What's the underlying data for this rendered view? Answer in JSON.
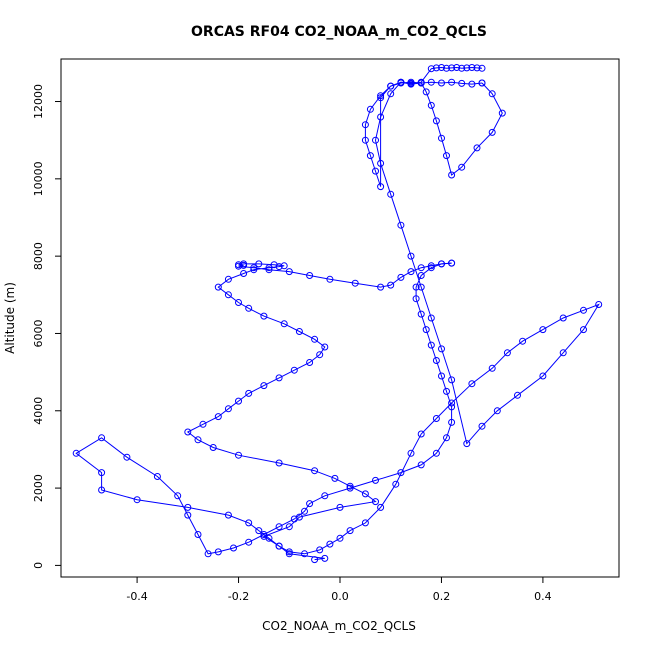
{
  "chart_data": {
    "type": "line",
    "title": "ORCAS RF04 CO2_NOAA_m_CO2_QCLS",
    "xlabel": "CO2_NOAA_m_CO2_QCLS",
    "ylabel": "Altitude (m)",
    "xlim": [
      -0.55,
      0.55
    ],
    "ylim": [
      -300,
      13100
    ],
    "x_ticks": [
      -0.4,
      -0.2,
      0.0,
      0.2,
      0.4
    ],
    "x_tick_labels": [
      "-0.4",
      "-0.2",
      "0.0",
      "0.2",
      "0.4"
    ],
    "y_ticks": [
      0,
      2000,
      4000,
      6000,
      8000,
      10000,
      12000
    ],
    "y_tick_labels": [
      "0",
      "2000",
      "4000",
      "6000",
      "8000",
      "10000",
      "12000"
    ],
    "grid": false,
    "legend": "none",
    "line_color": "#0000ff",
    "marker": "open-circle",
    "series": [
      {
        "x": [
          -0.05,
          -0.03,
          -0.1,
          -0.12,
          -0.15,
          -0.1,
          -0.08,
          0.0,
          0.07,
          0.05,
          0.02,
          -0.01,
          -0.05,
          -0.12,
          -0.2,
          -0.25,
          -0.28,
          -0.3,
          -0.27,
          -0.24,
          -0.22,
          -0.2,
          -0.18,
          -0.15,
          -0.12,
          -0.09,
          -0.06,
          -0.04,
          -0.03,
          -0.05,
          -0.08,
          -0.11,
          -0.15,
          -0.18,
          -0.2,
          -0.22,
          -0.24,
          -0.22,
          -0.19,
          -0.17,
          -0.14,
          -0.12,
          -0.11,
          -0.13,
          -0.16,
          -0.19,
          -0.2,
          -0.19,
          -0.2,
          -0.17,
          -0.14,
          -0.1,
          -0.06,
          -0.02,
          0.03,
          0.08,
          0.1,
          0.12,
          0.14,
          0.16,
          0.18,
          0.2,
          0.22
        ],
        "y": [
          150,
          180,
          300,
          500,
          750,
          1000,
          1250,
          1500,
          1650,
          1850,
          2050,
          2250,
          2450,
          2650,
          2850,
          3050,
          3250,
          3450,
          3650,
          3850,
          4050,
          4250,
          4450,
          4650,
          4850,
          5050,
          5250,
          5450,
          5650,
          5850,
          6050,
          6250,
          6450,
          6650,
          6800,
          7000,
          7200,
          7400,
          7550,
          7650,
          7700,
          7730,
          7750,
          7780,
          7800,
          7800,
          7780,
          7760,
          7740,
          7700,
          7650,
          7600,
          7500,
          7400,
          7300,
          7200,
          7250,
          7450,
          7600,
          7700,
          7750,
          7800,
          7820
        ]
      },
      {
        "x": [
          0.22,
          0.2,
          0.18,
          0.16,
          0.15,
          0.15,
          0.16,
          0.17,
          0.18,
          0.19,
          0.2,
          0.21,
          0.22,
          0.22,
          0.21,
          0.19,
          0.16,
          0.12,
          0.07,
          0.02,
          -0.03,
          -0.06,
          -0.07,
          -0.09,
          -0.12,
          -0.15,
          -0.18,
          -0.21,
          -0.24,
          -0.26,
          -0.28,
          -0.3,
          -0.32,
          -0.36,
          -0.42,
          -0.47,
          -0.52,
          -0.47,
          -0.47,
          -0.4,
          -0.3,
          -0.22,
          -0.18,
          -0.16,
          -0.14,
          -0.12,
          -0.1,
          -0.07,
          -0.04,
          -0.02,
          0.0,
          0.02,
          0.05,
          0.08,
          0.11,
          0.14,
          0.16,
          0.19,
          0.22,
          0.26,
          0.3,
          0.33,
          0.36,
          0.4,
          0.44,
          0.48,
          0.51,
          0.48,
          0.44,
          0.4,
          0.35,
          0.31,
          0.28,
          0.25,
          0.22,
          0.2,
          0.18,
          0.16,
          0.14,
          0.12,
          0.1,
          0.08,
          0.07,
          0.08,
          0.1,
          0.12,
          0.14,
          0.16,
          0.18,
          0.2,
          0.22,
          0.24,
          0.26,
          0.28
        ],
        "y": [
          7820,
          7800,
          7700,
          7500,
          7200,
          6900,
          6500,
          6100,
          5700,
          5300,
          4900,
          4500,
          4100,
          3700,
          3300,
          2900,
          2600,
          2400,
          2200,
          2000,
          1800,
          1600,
          1400,
          1200,
          1000,
          800,
          600,
          450,
          350,
          300,
          800,
          1300,
          1800,
          2300,
          2800,
          3300,
          2900,
          2400,
          1950,
          1700,
          1500,
          1300,
          1100,
          900,
          700,
          500,
          350,
          300,
          400,
          550,
          700,
          900,
          1100,
          1500,
          2100,
          2900,
          3400,
          3800,
          4200,
          4700,
          5100,
          5500,
          5800,
          6100,
          6400,
          6600,
          6750,
          6100,
          5500,
          4900,
          4400,
          4000,
          3600,
          3150,
          4800,
          5600,
          6400,
          7200,
          8000,
          8800,
          9600,
          10400,
          11000,
          11600,
          12200,
          12500,
          12450,
          12480,
          12500,
          12480,
          12500,
          12470,
          12450,
          12480
        ]
      },
      {
        "x": [
          0.28,
          0.3,
          0.32,
          0.3,
          0.27,
          0.24,
          0.22,
          0.21,
          0.2,
          0.19,
          0.18,
          0.17,
          0.16,
          0.14,
          0.12,
          0.1,
          0.08,
          0.06,
          0.05,
          0.05,
          0.06,
          0.07,
          0.08,
          0.08,
          0.1,
          0.12,
          0.14,
          0.16,
          0.18,
          0.19,
          0.2,
          0.21,
          0.22,
          0.23,
          0.24,
          0.25,
          0.26,
          0.27,
          0.28
        ],
        "y": [
          12480,
          12200,
          11700,
          11200,
          10800,
          10300,
          10100,
          10600,
          11050,
          11500,
          11900,
          12250,
          12480,
          12500,
          12480,
          12400,
          12150,
          11800,
          11400,
          11000,
          10600,
          10200,
          9800,
          12100,
          12400,
          12500,
          12470,
          12500,
          12850,
          12870,
          12880,
          12860,
          12870,
          12880,
          12860,
          12870,
          12880,
          12870,
          12860
        ]
      }
    ]
  }
}
